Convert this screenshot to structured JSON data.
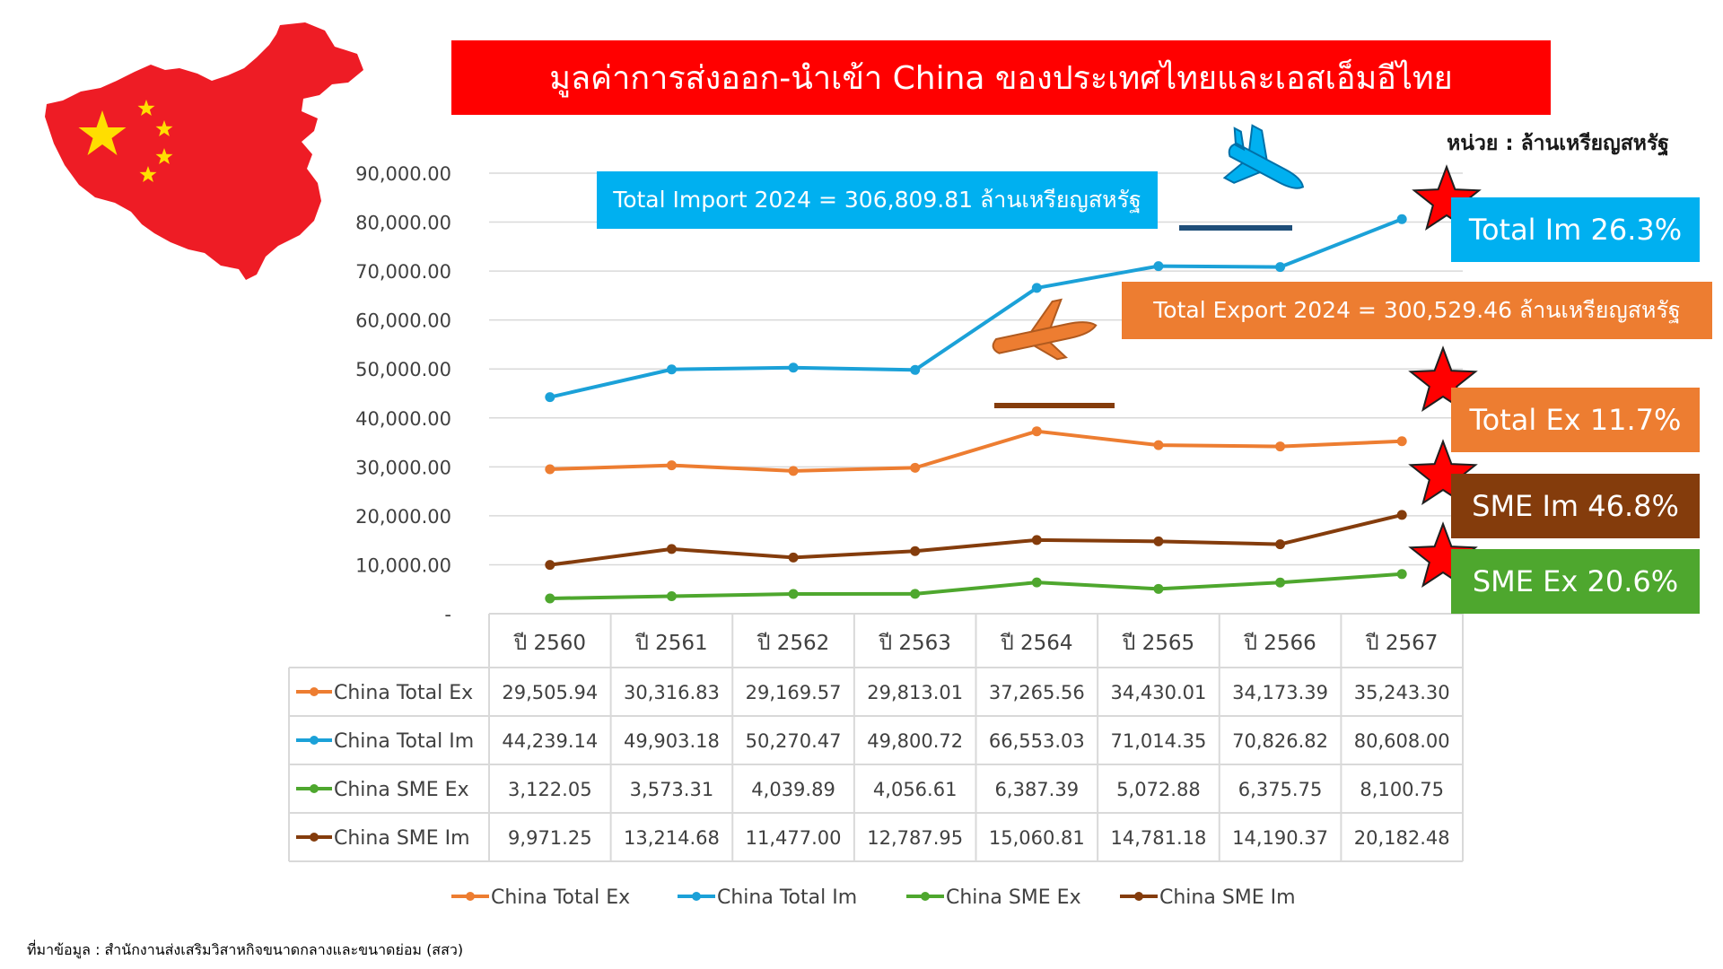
{
  "title": "มูลค่าการส่งออก-นำเข้า China ของประเทศไทยและเอสเอ็มอีไทย",
  "unit_label": "หน่วย : ล้านเหรียญสหรัฐ",
  "callouts": {
    "import_total": "Total Import 2024 = 306,809.81 ล้านเหรียญสหรัฐ",
    "export_total": "Total Export 2024 = 300,529.46 ล้านเหรียญสหรัฐ"
  },
  "growth_boxes": [
    {
      "label": "Total Im 26.3%",
      "color": "#00b0f0"
    },
    {
      "label": "Total Ex 11.7%",
      "color": "#ed7d31"
    },
    {
      "label": "SME Im 46.8%",
      "color": "#843c0c"
    },
    {
      "label": "SME Ex 20.6%",
      "color": "#4ea72e"
    }
  ],
  "source_note": "ที่มาข้อมูล : สำนักงานส่งเสริมวิสาหกิจขนาดกลางและขนาดย่อม (สสว)",
  "icons": [
    "china-map-icon",
    "airplane-landing-icon",
    "airplane-takeoff-icon",
    "star-icon"
  ],
  "chart_data": {
    "type": "line",
    "categories": [
      "ปี 2560",
      "ปี 2561",
      "ปี 2562",
      "ปี 2563",
      "ปี 2564",
      "ปี 2565",
      "ปี 2566",
      "ปี 2567"
    ],
    "y_ticks": [
      "90,000.00",
      "80,000.00",
      "70,000.00",
      "60,000.00",
      "50,000.00",
      "40,000.00",
      "30,000.00",
      "20,000.00",
      "10,000.00",
      "-"
    ],
    "ylim": [
      0,
      90000
    ],
    "grid": true,
    "legend_position": "bottom",
    "series": [
      {
        "name": "China Total Ex",
        "color": "#ed7d31",
        "values": [
          29505.94,
          30316.83,
          29169.57,
          29813.01,
          37265.56,
          34430.01,
          34173.39,
          35243.3
        ],
        "labels": [
          "29,505.94",
          "30,316.83",
          "29,169.57",
          "29,813.01",
          "37,265.56",
          "34,430.01",
          "34,173.39",
          "35,243.30"
        ]
      },
      {
        "name": "China Total Im",
        "color": "#1ba1d8",
        "values": [
          44239.14,
          49903.18,
          50270.47,
          49800.72,
          66553.03,
          71014.35,
          70826.82,
          80608.0
        ],
        "labels": [
          "44,239.14",
          "49,903.18",
          "50,270.47",
          "49,800.72",
          "66,553.03",
          "71,014.35",
          "70,826.82",
          "80,608.00"
        ]
      },
      {
        "name": "China SME Ex",
        "color": "#4ea72e",
        "values": [
          3122.05,
          3573.31,
          4039.89,
          4056.61,
          6387.39,
          5072.88,
          6375.75,
          8100.75
        ],
        "labels": [
          "3,122.05",
          "3,573.31",
          "4,039.89",
          "4,056.61",
          "6,387.39",
          "5,072.88",
          "6,375.75",
          "8,100.75"
        ]
      },
      {
        "name": "China SME Im",
        "color": "#843c0c",
        "values": [
          9971.25,
          13214.68,
          11477.0,
          12787.95,
          15060.81,
          14781.18,
          14190.37,
          20182.48
        ],
        "labels": [
          "9,971.25",
          "13,214.68",
          "11,477.00",
          "12,787.95",
          "15,060.81",
          "14,781.18",
          "14,190.37",
          "20,182.48"
        ]
      }
    ]
  }
}
